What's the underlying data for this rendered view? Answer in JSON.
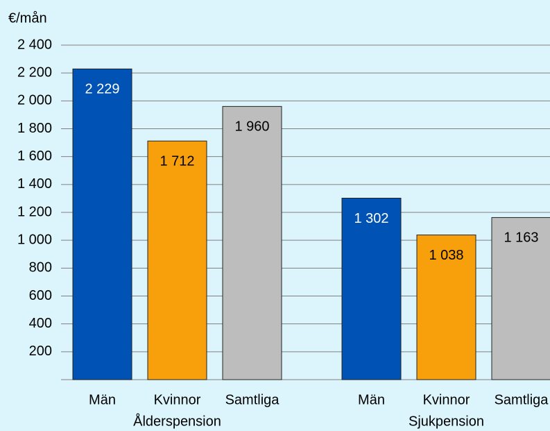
{
  "chart_data": {
    "type": "bar",
    "y_axis_label": "€/mån",
    "categories": [
      "Ålderspension",
      "Sjukpension"
    ],
    "series": [
      {
        "name": "Män",
        "color": "#0052b4",
        "values": [
          2229,
          1302
        ],
        "value_labels": [
          "2 229",
          "1 302"
        ]
      },
      {
        "name": "Kvinnor",
        "color": "#f7a00c",
        "values": [
          1712,
          1038
        ],
        "value_labels": [
          "1 712",
          "1 038"
        ]
      },
      {
        "name": "Samtliga",
        "color": "#bdbdbd",
        "values": [
          1960,
          1163
        ],
        "value_labels": [
          "1 960",
          "1 163"
        ]
      }
    ],
    "ylim": [
      0,
      2400
    ],
    "yticks": [
      200,
      400,
      600,
      800,
      {
        "value": 1000,
        "label": "1 000"
      },
      {
        "value": 1200,
        "label": "1 200"
      },
      {
        "value": 1400,
        "label": "1 400"
      },
      {
        "value": 1600,
        "label": "1 600"
      },
      {
        "value": 1800,
        "label": "1 800"
      },
      {
        "value": 2000,
        "label": "2 000"
      },
      {
        "value": 2200,
        "label": "2 200"
      },
      {
        "value": 2400,
        "label": "2 400"
      }
    ],
    "grid": true
  }
}
